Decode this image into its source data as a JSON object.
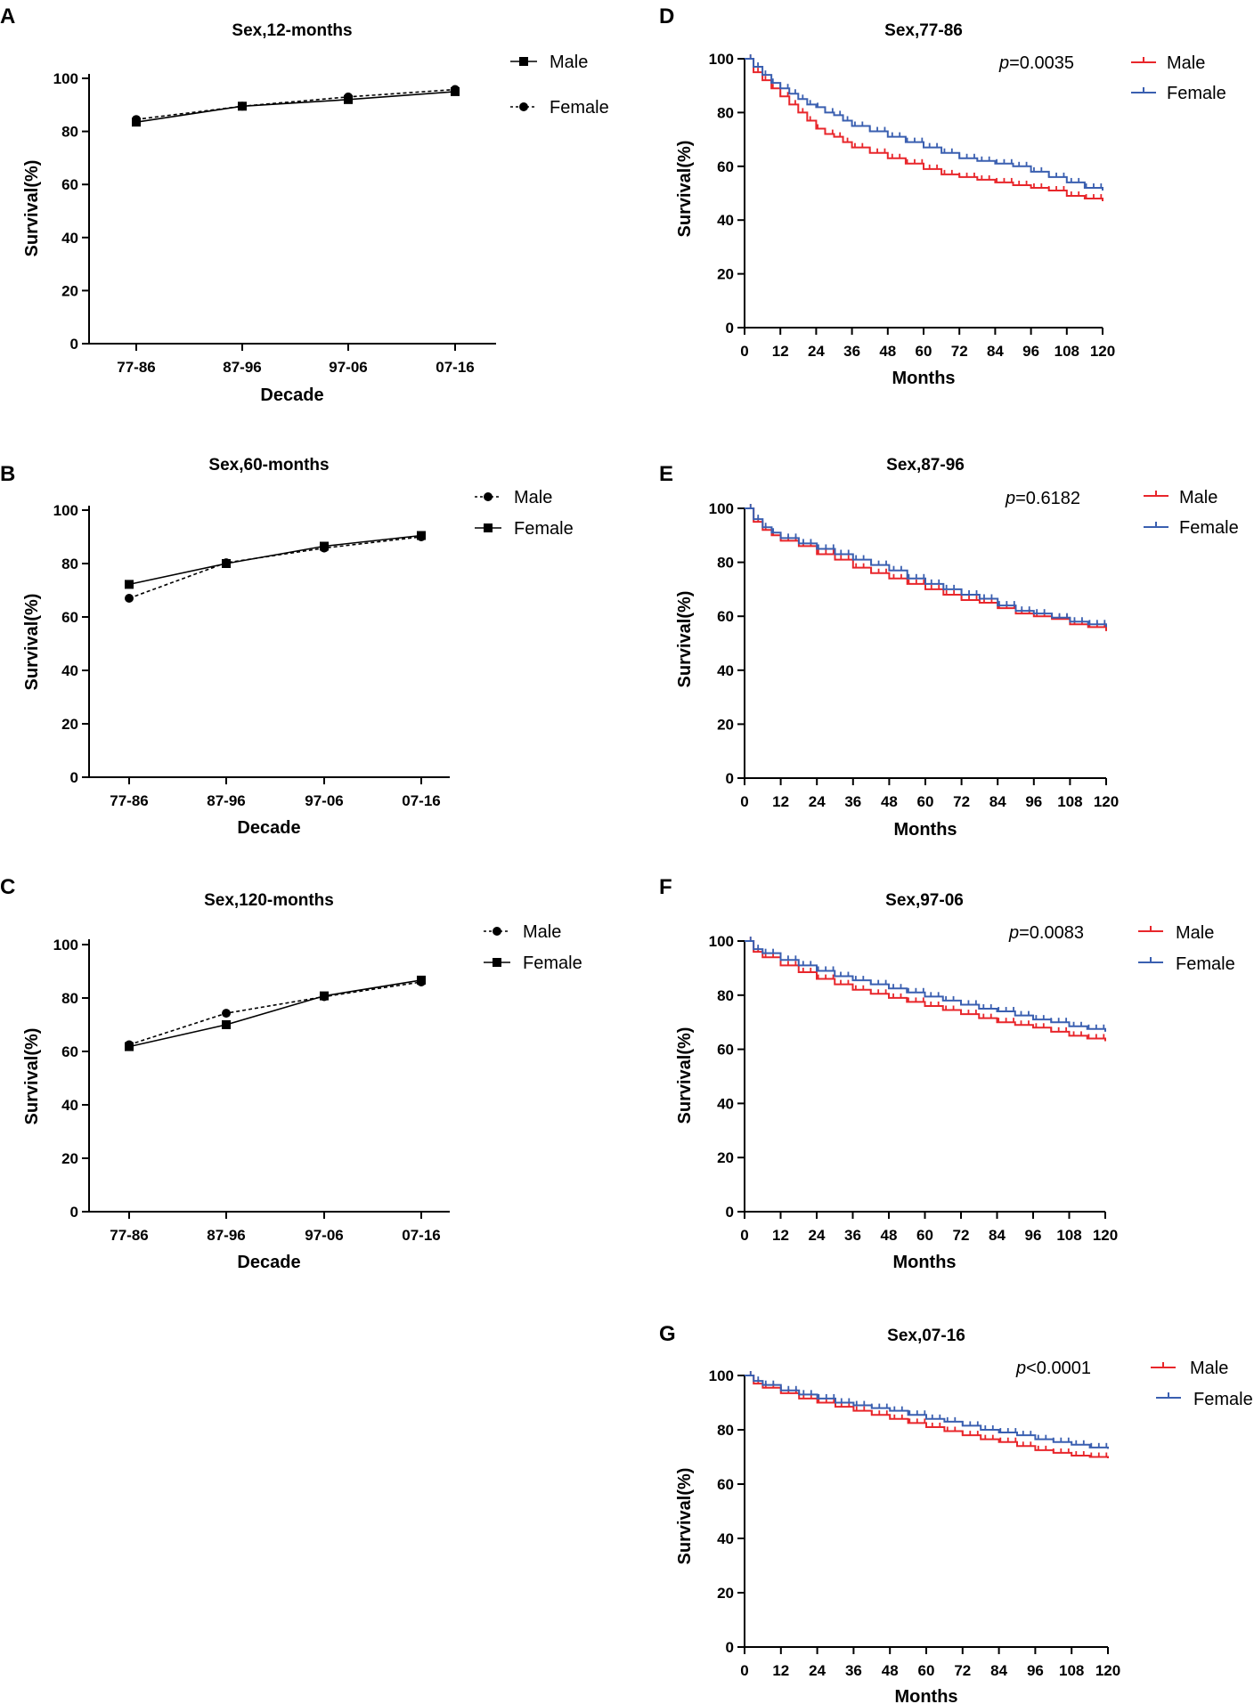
{
  "panel_letters": [
    "A",
    "B",
    "C",
    "D",
    "E",
    "F",
    "G"
  ],
  "chart_data": [
    {
      "panel": "A",
      "type": "line",
      "title": "Sex,12-months",
      "xlabel": "Decade",
      "ylabel": "Survival(%)",
      "categories": [
        "77-86",
        "87-96",
        "97-06",
        "07-16"
      ],
      "ylim": [
        0,
        100
      ],
      "yticks": [
        "0",
        "20",
        "40",
        "60",
        "80",
        "100"
      ],
      "legend_position": "top-right",
      "series": [
        {
          "name": "Male",
          "marker": "square",
          "line": "solid",
          "values": [
            83.5,
            89.5,
            92,
            95
          ]
        },
        {
          "name": "Female",
          "marker": "circle",
          "line": "dashed",
          "values": [
            84.5,
            89.5,
            93,
            95.8
          ]
        }
      ]
    },
    {
      "panel": "B",
      "type": "line",
      "title": "Sex,60-months",
      "xlabel": "Decade",
      "ylabel": "Survival(%)",
      "categories": [
        "77-86",
        "87-96",
        "97-06",
        "07-16"
      ],
      "ylim": [
        0,
        100
      ],
      "yticks": [
        "0",
        "20",
        "40",
        "60",
        "80",
        "100"
      ],
      "legend_position": "top-right",
      "series": [
        {
          "name": "Male",
          "marker": "circle",
          "line": "dashed",
          "values": [
            67,
            80.3,
            85.8,
            90
          ]
        },
        {
          "name": "Female",
          "marker": "square",
          "line": "solid",
          "values": [
            72.2,
            80,
            86.5,
            90.5
          ]
        }
      ]
    },
    {
      "panel": "C",
      "type": "line",
      "title": "Sex,120-months",
      "xlabel": "Decade",
      "ylabel": "Survival(%)",
      "categories": [
        "77-86",
        "87-96",
        "97-06",
        "07-16"
      ],
      "ylim": [
        0,
        100
      ],
      "yticks": [
        "0",
        "20",
        "40",
        "60",
        "80",
        "100"
      ],
      "legend_position": "top-right",
      "series": [
        {
          "name": "Male",
          "marker": "circle",
          "line": "dashed",
          "values": [
            62.5,
            74.3,
            80.5,
            86
          ]
        },
        {
          "name": "Female",
          "marker": "square",
          "line": "solid",
          "values": [
            61.8,
            70,
            80.8,
            86.7
          ]
        }
      ]
    },
    {
      "panel": "D",
      "type": "line",
      "subtype": "kaplan-meier",
      "title": "Sex,77-86",
      "p_prefix": "p",
      "p_rest": "=0.0035",
      "xlabel": "Months",
      "ylabel": "Survival(%)",
      "xlim": [
        0,
        120
      ],
      "ylim": [
        0,
        100
      ],
      "xticks": [
        "0",
        "12",
        "24",
        "36",
        "48",
        "60",
        "72",
        "84",
        "96",
        "108",
        "120"
      ],
      "yticks": [
        "0",
        "20",
        "40",
        "60",
        "80",
        "100"
      ],
      "legend_position": "top-right",
      "series": [
        {
          "name": "Male",
          "color": "#e8262b",
          "x": [
            0,
            3,
            6,
            9,
            12,
            15,
            18,
            21,
            24,
            27,
            30,
            33,
            36,
            42,
            48,
            54,
            60,
            66,
            72,
            78,
            84,
            90,
            96,
            102,
            108,
            114,
            120
          ],
          "y": [
            100,
            95,
            92,
            89,
            86,
            83,
            80,
            77,
            74,
            72,
            71,
            69,
            67,
            65,
            63,
            61,
            59,
            57,
            56,
            55,
            54,
            53,
            52,
            51,
            49,
            48,
            47
          ]
        },
        {
          "name": "Female",
          "color": "#3a5fb0",
          "x": [
            0,
            3,
            6,
            9,
            12,
            15,
            18,
            21,
            24,
            27,
            30,
            33,
            36,
            42,
            48,
            54,
            60,
            66,
            72,
            78,
            84,
            90,
            96,
            102,
            108,
            114,
            120
          ],
          "y": [
            100,
            97,
            94,
            91,
            89,
            87,
            85,
            83,
            82,
            80,
            79,
            77,
            75,
            73,
            71,
            69,
            67,
            65,
            63,
            62,
            61,
            60,
            58,
            56,
            54,
            52,
            51
          ]
        }
      ]
    },
    {
      "panel": "E",
      "type": "line",
      "subtype": "kaplan-meier",
      "title": "Sex,87-96",
      "p_prefix": "p",
      "p_rest": "=0.6182",
      "xlabel": "Months",
      "ylabel": "Survival(%)",
      "xlim": [
        0,
        120
      ],
      "ylim": [
        0,
        100
      ],
      "xticks": [
        "0",
        "12",
        "24",
        "36",
        "48",
        "60",
        "72",
        "84",
        "96",
        "108",
        "120"
      ],
      "yticks": [
        "0",
        "20",
        "40",
        "60",
        "80",
        "100"
      ],
      "legend_position": "top-right",
      "series": [
        {
          "name": "Male",
          "color": "#e8262b",
          "x": [
            0,
            3,
            6,
            9,
            12,
            18,
            24,
            30,
            36,
            42,
            48,
            54,
            60,
            66,
            72,
            78,
            84,
            90,
            96,
            102,
            108,
            114,
            120
          ],
          "y": [
            100,
            95,
            92,
            90,
            88,
            86,
            83,
            81,
            78,
            76,
            74,
            72,
            70,
            68,
            66,
            65,
            63,
            61,
            60,
            59,
            57,
            56,
            54.5
          ]
        },
        {
          "name": "Female",
          "color": "#3a5fb0",
          "x": [
            0,
            3,
            6,
            9,
            12,
            18,
            24,
            30,
            36,
            42,
            48,
            54,
            60,
            66,
            72,
            78,
            84,
            90,
            96,
            102,
            108,
            114,
            120
          ],
          "y": [
            100,
            96,
            93,
            91,
            89,
            87,
            85,
            83,
            81,
            79,
            77,
            74,
            72,
            70,
            68,
            66.5,
            64,
            62,
            61,
            59.5,
            58,
            57,
            56
          ]
        }
      ]
    },
    {
      "panel": "F",
      "type": "line",
      "subtype": "kaplan-meier",
      "title": "Sex,97-06",
      "p_prefix": "p",
      "p_rest": "=0.0083",
      "xlabel": "Months",
      "ylabel": "Survival(%)",
      "xlim": [
        0,
        120
      ],
      "ylim": [
        0,
        100
      ],
      "xticks": [
        "0",
        "12",
        "24",
        "36",
        "48",
        "60",
        "72",
        "84",
        "96",
        "108",
        "120"
      ],
      "yticks": [
        "0",
        "20",
        "40",
        "60",
        "80",
        "100"
      ],
      "legend_position": "top-right",
      "series": [
        {
          "name": "Male",
          "color": "#e8262b",
          "x": [
            0,
            3,
            6,
            12,
            18,
            24,
            30,
            36,
            42,
            48,
            54,
            60,
            66,
            72,
            78,
            84,
            90,
            96,
            102,
            108,
            114,
            120
          ],
          "y": [
            100,
            96,
            94,
            91,
            88.5,
            86,
            84,
            82,
            80.5,
            79,
            77.5,
            76,
            74.5,
            73,
            71.5,
            70,
            69,
            68,
            66.5,
            65,
            64,
            63
          ]
        },
        {
          "name": "Female",
          "color": "#3a5fb0",
          "x": [
            0,
            3,
            6,
            12,
            18,
            24,
            30,
            36,
            42,
            48,
            54,
            60,
            66,
            72,
            78,
            84,
            90,
            96,
            102,
            108,
            114,
            120
          ],
          "y": [
            100,
            97,
            95.5,
            93,
            91,
            89,
            87,
            85.5,
            84,
            82.5,
            81,
            79.5,
            78,
            76.5,
            75,
            74,
            72.5,
            71,
            70,
            68.5,
            67.5,
            66.5
          ]
        }
      ]
    },
    {
      "panel": "G",
      "type": "line",
      "subtype": "kaplan-meier",
      "title": "Sex,07-16",
      "p_prefix": "p",
      "p_rest": "<0.0001",
      "xlabel": "Months",
      "ylabel": "Survival(%)",
      "xlim": [
        0,
        120
      ],
      "ylim": [
        0,
        100
      ],
      "xticks": [
        "0",
        "12",
        "24",
        "36",
        "48",
        "60",
        "72",
        "84",
        "96",
        "108",
        "120"
      ],
      "yticks": [
        "0",
        "20",
        "40",
        "60",
        "80",
        "100"
      ],
      "legend_position": "top-right",
      "series": [
        {
          "name": "Male",
          "color": "#e8262b",
          "x": [
            0,
            3,
            6,
            12,
            18,
            24,
            30,
            36,
            42,
            48,
            54,
            60,
            66,
            72,
            78,
            84,
            90,
            96,
            102,
            108,
            114,
            120
          ],
          "y": [
            100,
            97,
            95.5,
            93.5,
            91.5,
            90,
            88.5,
            87,
            85.5,
            84,
            82.5,
            81,
            79.5,
            78,
            76.5,
            75.5,
            74,
            72.5,
            71.5,
            70.5,
            70,
            69.5
          ]
        },
        {
          "name": "Female",
          "color": "#3a5fb0",
          "x": [
            0,
            3,
            6,
            12,
            18,
            24,
            30,
            36,
            42,
            48,
            54,
            60,
            66,
            72,
            78,
            84,
            90,
            96,
            102,
            108,
            114,
            120
          ],
          "y": [
            100,
            98,
            96.5,
            94.5,
            93,
            91.5,
            90,
            89,
            88,
            87,
            85.5,
            84,
            83,
            81.5,
            80,
            79,
            78,
            76.5,
            75.5,
            74.5,
            73.5,
            73
          ]
        }
      ]
    }
  ]
}
